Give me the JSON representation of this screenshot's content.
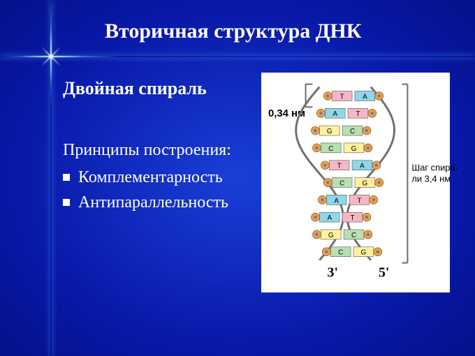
{
  "title": "Вторичная структура ДНК",
  "subtitle": "Двойная спираль",
  "principles_heading": "Принципы построения:",
  "bullets": [
    "Комплементарность",
    "Антипараллельность"
  ],
  "figure": {
    "background": "#ffffff",
    "rise_label": "0,34 нм",
    "pitch_label_line1": "Шаг спира-",
    "pitch_label_line2": "ли 3,4 нм",
    "end_label_left": "3'",
    "end_label_right": "5'",
    "base_colors": {
      "A": "#8fd6e8",
      "T": "#f5b7c5",
      "G": "#fff0a0",
      "C": "#b8e0b0"
    },
    "backbone_sugar_color": "#f0a040",
    "backbone_phosphate_color": "#5878d8",
    "bracket_color": "#6a6a6a",
    "rungs": [
      {
        "left": "T",
        "right": "A",
        "xshift": 12
      },
      {
        "left": "A",
        "right": "T",
        "xshift": 2
      },
      {
        "left": "G",
        "right": "C",
        "xshift": -6
      },
      {
        "left": "C",
        "right": "G",
        "xshift": -4
      },
      {
        "left": "T",
        "right": "A",
        "xshift": 8
      },
      {
        "left": "C",
        "right": "G",
        "xshift": 12
      },
      {
        "left": "A",
        "right": "T",
        "xshift": 4
      },
      {
        "left": "A",
        "right": "T",
        "xshift": -6
      },
      {
        "left": "G",
        "right": "C",
        "xshift": -4
      },
      {
        "left": "C",
        "right": "G",
        "xshift": 10
      }
    ]
  },
  "colors": {
    "text": "#ffffff",
    "label_text": "#000000"
  }
}
